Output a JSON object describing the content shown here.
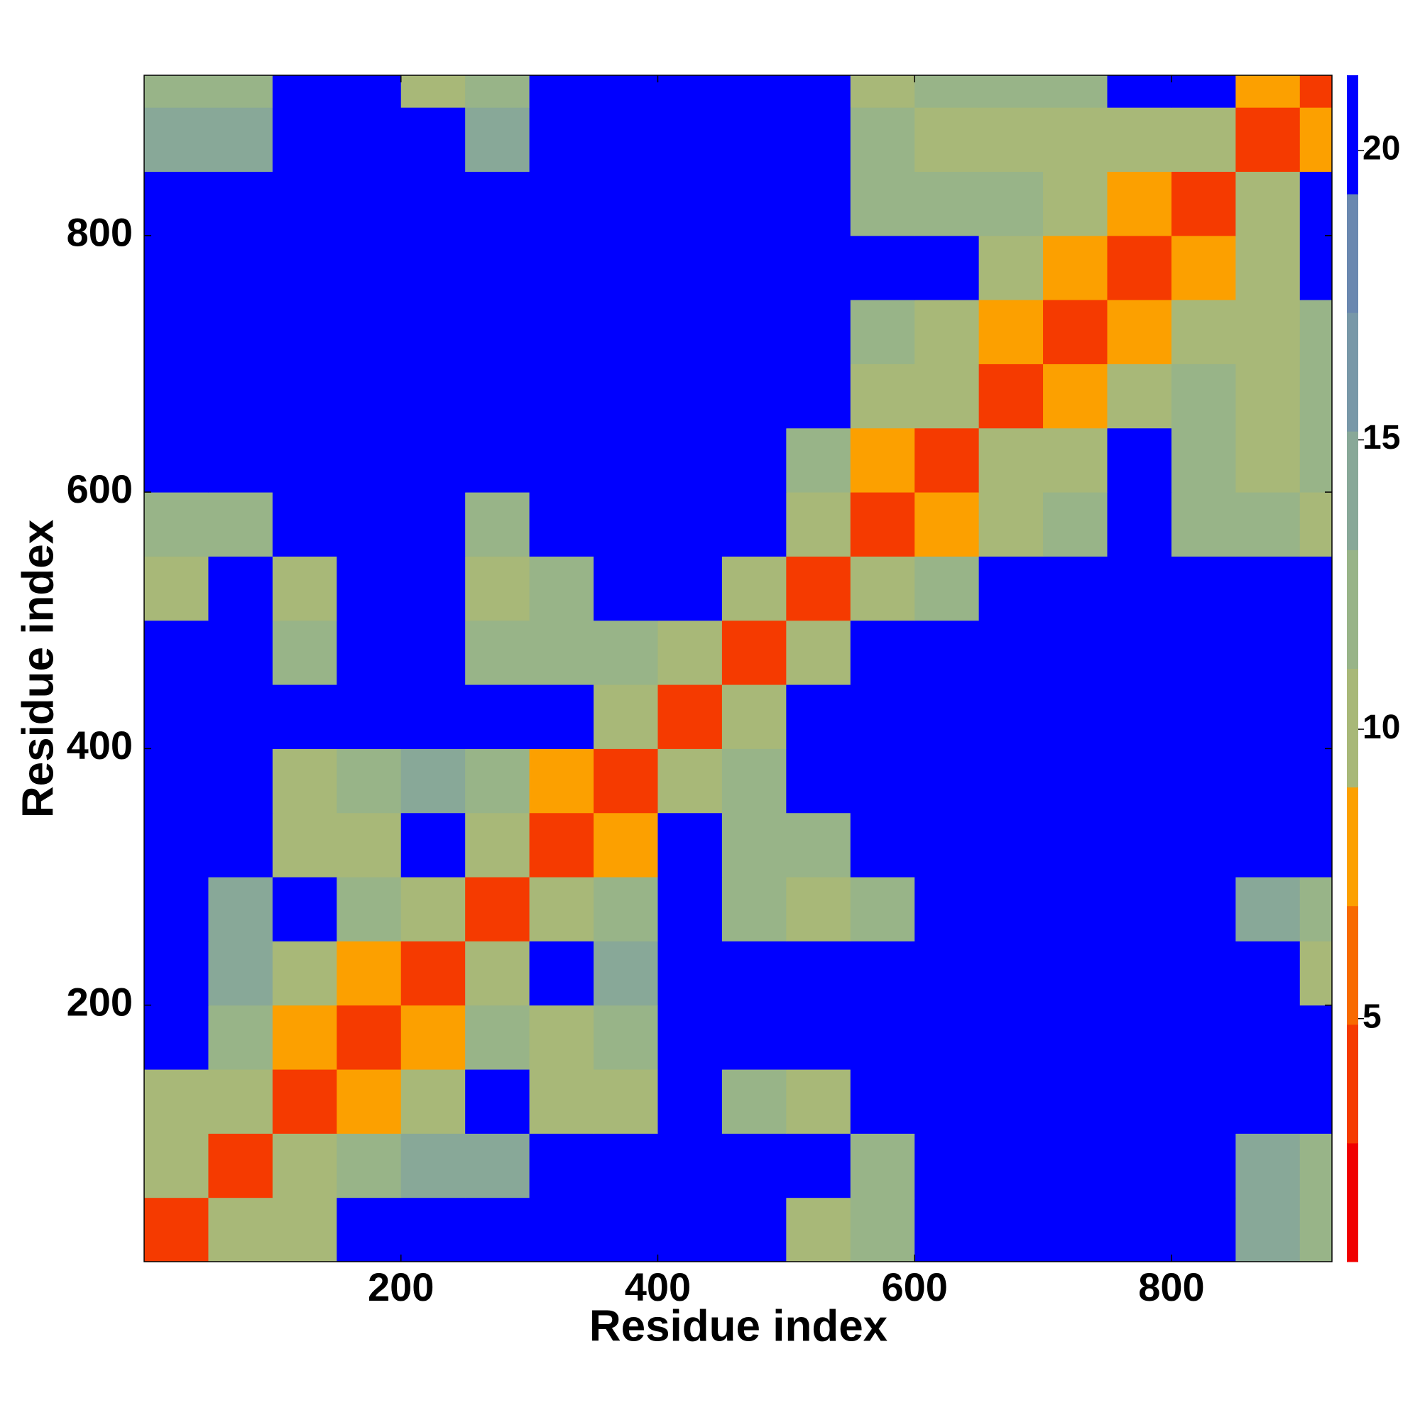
{
  "chart_data": {
    "type": "heatmap",
    "x_label": "Residue index",
    "y_label": "Residue index",
    "x_bins": [
      0,
      50,
      100,
      150,
      200,
      250,
      300,
      350,
      400,
      450,
      500,
      550,
      600,
      650,
      700,
      750,
      800,
      850,
      900,
      925
    ],
    "y_bins": [
      0,
      50,
      100,
      150,
      200,
      250,
      300,
      350,
      400,
      450,
      500,
      550,
      600,
      650,
      700,
      750,
      800,
      850,
      900,
      925
    ],
    "xlim": [
      0,
      925
    ],
    "ylim": [
      0,
      925
    ],
    "xticks": [
      200,
      400,
      600,
      800
    ],
    "yticks": [
      200,
      400,
      600,
      800
    ],
    "z": [
      [
        3,
        10,
        11,
        21,
        21,
        21,
        21,
        21,
        21,
        21,
        11,
        12,
        21,
        21,
        21,
        21,
        21,
        14,
        12
      ],
      [
        10,
        3,
        10,
        13,
        14,
        14,
        21,
        21,
        21,
        21,
        21,
        12,
        21,
        21,
        21,
        21,
        21,
        14,
        12
      ],
      [
        11,
        10,
        3,
        8,
        10,
        21,
        11,
        11,
        21,
        12,
        11,
        21,
        21,
        21,
        21,
        21,
        21,
        21,
        21
      ],
      [
        21,
        13,
        8,
        3,
        8,
        13,
        11,
        12,
        21,
        21,
        21,
        21,
        21,
        21,
        21,
        21,
        21,
        21,
        21
      ],
      [
        21,
        14,
        10,
        8,
        3,
        10,
        21,
        14,
        21,
        21,
        21,
        21,
        21,
        21,
        21,
        21,
        21,
        21,
        11
      ],
      [
        21,
        14,
        21,
        13,
        10,
        3,
        11,
        13,
        21,
        12,
        11,
        12,
        21,
        21,
        21,
        21,
        21,
        14,
        12
      ],
      [
        21,
        21,
        11,
        11,
        21,
        11,
        3,
        8,
        21,
        12,
        12,
        21,
        21,
        21,
        21,
        21,
        21,
        21,
        21
      ],
      [
        21,
        21,
        11,
        12,
        14,
        13,
        8,
        3,
        10,
        12,
        21,
        21,
        21,
        21,
        21,
        21,
        21,
        21,
        21
      ],
      [
        21,
        21,
        21,
        21,
        21,
        21,
        21,
        10,
        3,
        10,
        21,
        21,
        21,
        21,
        21,
        21,
        21,
        21,
        21
      ],
      [
        21,
        21,
        12,
        21,
        21,
        12,
        12,
        12,
        10,
        3,
        10,
        21,
        21,
        21,
        21,
        21,
        21,
        21,
        21
      ],
      [
        11,
        21,
        11,
        21,
        21,
        11,
        12,
        21,
        21,
        10,
        3,
        10,
        13,
        21,
        21,
        21,
        21,
        21,
        21
      ],
      [
        12,
        12,
        21,
        21,
        21,
        12,
        21,
        21,
        21,
        21,
        10,
        3,
        8,
        11,
        13,
        21,
        12,
        12,
        11
      ],
      [
        21,
        21,
        21,
        21,
        21,
        21,
        21,
        21,
        21,
        21,
        13,
        8,
        3,
        11,
        10,
        21,
        13,
        11,
        12
      ],
      [
        21,
        21,
        21,
        21,
        21,
        21,
        21,
        21,
        21,
        21,
        21,
        11,
        11,
        3,
        8,
        11,
        12,
        11,
        13
      ],
      [
        21,
        21,
        21,
        21,
        21,
        21,
        21,
        21,
        21,
        21,
        21,
        13,
        10,
        8,
        3,
        8,
        10,
        10,
        12
      ],
      [
        21,
        21,
        21,
        21,
        21,
        21,
        21,
        21,
        21,
        21,
        21,
        21,
        21,
        11,
        8,
        3,
        8,
        11,
        21
      ],
      [
        21,
        21,
        21,
        21,
        21,
        21,
        21,
        21,
        21,
        21,
        21,
        12,
        13,
        12,
        10,
        8,
        3,
        9,
        21
      ],
      [
        14,
        14,
        21,
        21,
        21,
        14,
        21,
        21,
        21,
        21,
        21,
        12,
        11,
        11,
        10,
        11,
        9,
        3,
        8
      ],
      [
        12,
        12,
        21,
        21,
        11,
        12,
        21,
        21,
        21,
        21,
        21,
        11,
        12,
        13,
        12,
        21,
        21,
        8,
        3
      ]
    ],
    "colorbar": {
      "clim": [
        0.8,
        21.3
      ],
      "ticks": [
        5,
        10,
        15,
        20
      ],
      "colors": [
        "#f00000",
        "#f53a00",
        "#f86a00",
        "#fca000",
        "#a8b878",
        "#98b488",
        "#88a898",
        "#7898a8",
        "#6a88b0",
        "#0000ff"
      ]
    }
  }
}
